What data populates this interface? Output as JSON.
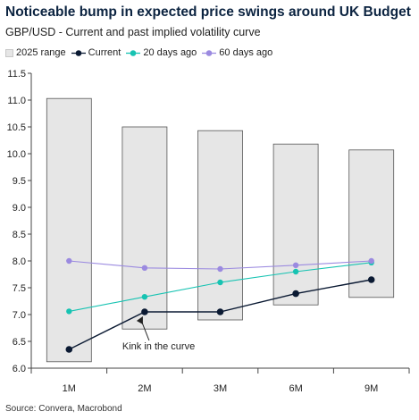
{
  "chart_data": {
    "type": "line",
    "title": "Noticeable bump in expected price swings around UK Budget",
    "subtitle": "GBP/USD - Current and past implied volatility curve",
    "categories": [
      "1M",
      "2M",
      "3M",
      "6M",
      "9M"
    ],
    "ylim": [
      6.0,
      11.5
    ],
    "yticks": [
      "6.0",
      "6.5",
      "7.0",
      "7.5",
      "8.0",
      "8.5",
      "9.0",
      "9.5",
      "10.0",
      "10.5",
      "11.0",
      "11.5"
    ],
    "range_series": {
      "name": "2025 range",
      "low": [
        6.12,
        6.73,
        6.9,
        7.18,
        7.32
      ],
      "high": [
        11.03,
        10.5,
        10.43,
        10.18,
        10.07
      ],
      "color": "#e6e6e6"
    },
    "series": [
      {
        "name": "Current",
        "values": [
          6.35,
          7.05,
          7.05,
          7.39,
          7.65
        ],
        "color": "#0b1a33"
      },
      {
        "name": "20 days ago",
        "values": [
          7.06,
          7.33,
          7.6,
          7.8,
          7.97
        ],
        "color": "#17c3b2"
      },
      {
        "name": "60 days ago",
        "values": [
          8.0,
          7.87,
          7.85,
          7.92,
          8.0
        ],
        "color": "#9b8ae0"
      }
    ],
    "annotation": {
      "text": "Kink in the curve",
      "category": "2M",
      "value": 7.05
    },
    "grid": false,
    "legend_position": "top-left"
  },
  "source": "Source: Convera, Macrobond"
}
